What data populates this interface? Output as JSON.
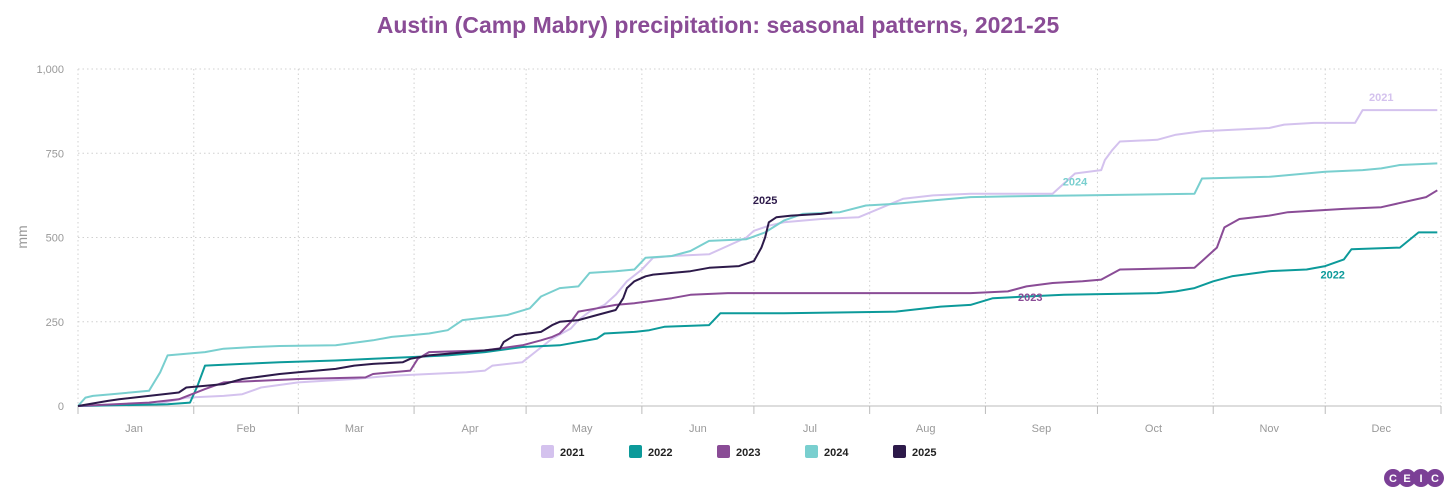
{
  "chart_data": {
    "type": "line",
    "title": "Austin (Camp Mabry) precipitation: seasonal patterns, 2021-25",
    "ylabel": "mm",
    "xlabel": "",
    "ylim": [
      0,
      1000
    ],
    "y_ticks": [
      0,
      250,
      500,
      750,
      1000
    ],
    "y_tick_labels": [
      "0",
      "250",
      "500",
      "750",
      "1,000"
    ],
    "x_range": [
      1,
      366
    ],
    "month_labels": [
      "Jan",
      "Feb",
      "Mar",
      "Apr",
      "May",
      "Jun",
      "Jul",
      "Aug",
      "Sep",
      "Oct",
      "Nov",
      "Dec"
    ],
    "month_boundaries_day": [
      1,
      32,
      60,
      91,
      121,
      152,
      182,
      213,
      244,
      274,
      305,
      335,
      366
    ],
    "month_label_days": [
      16,
      46,
      75,
      106,
      136,
      167,
      197,
      228,
      259,
      289,
      320,
      350
    ],
    "grid": true,
    "legend_position": "bottom",
    "series": [
      {
        "name": "2021",
        "color": "#d4c2ee",
        "label_day": 350,
        "label_value": 905,
        "points": [
          [
            1,
            0
          ],
          [
            22,
            5
          ],
          [
            30,
            25
          ],
          [
            40,
            30
          ],
          [
            45,
            35
          ],
          [
            50,
            55
          ],
          [
            60,
            70
          ],
          [
            75,
            80
          ],
          [
            85,
            90
          ],
          [
            95,
            95
          ],
          [
            105,
            100
          ],
          [
            110,
            105
          ],
          [
            112,
            120
          ],
          [
            120,
            130
          ],
          [
            124,
            165
          ],
          [
            128,
            200
          ],
          [
            133,
            230
          ],
          [
            135,
            255
          ],
          [
            138,
            280
          ],
          [
            142,
            300
          ],
          [
            145,
            330
          ],
          [
            148,
            370
          ],
          [
            152,
            405
          ],
          [
            155,
            440
          ],
          [
            160,
            445
          ],
          [
            170,
            450
          ],
          [
            180,
            500
          ],
          [
            182,
            520
          ],
          [
            186,
            535
          ],
          [
            190,
            545
          ],
          [
            200,
            555
          ],
          [
            210,
            560
          ],
          [
            222,
            615
          ],
          [
            230,
            625
          ],
          [
            240,
            630
          ],
          [
            262,
            630
          ],
          [
            265,
            660
          ],
          [
            268,
            690
          ],
          [
            275,
            700
          ],
          [
            276,
            730
          ],
          [
            278,
            760
          ],
          [
            280,
            785
          ],
          [
            290,
            790
          ],
          [
            295,
            805
          ],
          [
            302,
            815
          ],
          [
            320,
            825
          ],
          [
            324,
            835
          ],
          [
            332,
            840
          ],
          [
            343,
            840
          ],
          [
            345,
            878
          ],
          [
            365,
            878
          ]
        ]
      },
      {
        "name": "2022",
        "color": "#0c9a9a",
        "label_day": 337,
        "label_value": 378,
        "points": [
          [
            1,
            0
          ],
          [
            25,
            5
          ],
          [
            31,
            10
          ],
          [
            33,
            60
          ],
          [
            35,
            120
          ],
          [
            45,
            125
          ],
          [
            55,
            130
          ],
          [
            70,
            135
          ],
          [
            80,
            140
          ],
          [
            90,
            145
          ],
          [
            100,
            150
          ],
          [
            110,
            160
          ],
          [
            120,
            175
          ],
          [
            130,
            180
          ],
          [
            140,
            200
          ],
          [
            142,
            215
          ],
          [
            150,
            220
          ],
          [
            154,
            225
          ],
          [
            158,
            235
          ],
          [
            170,
            240
          ],
          [
            173,
            275
          ],
          [
            190,
            275
          ],
          [
            220,
            280
          ],
          [
            232,
            295
          ],
          [
            240,
            300
          ],
          [
            246,
            320
          ],
          [
            255,
            325
          ],
          [
            265,
            330
          ],
          [
            290,
            335
          ],
          [
            295,
            340
          ],
          [
            300,
            350
          ],
          [
            305,
            370
          ],
          [
            310,
            385
          ],
          [
            320,
            400
          ],
          [
            330,
            405
          ],
          [
            335,
            415
          ],
          [
            340,
            435
          ],
          [
            342,
            465
          ],
          [
            355,
            470
          ],
          [
            360,
            515
          ],
          [
            365,
            515
          ]
        ]
      },
      {
        "name": "2023",
        "color": "#8a4c96",
        "label_day": 256,
        "label_value": 312,
        "points": [
          [
            1,
            0
          ],
          [
            20,
            10
          ],
          [
            28,
            20
          ],
          [
            35,
            50
          ],
          [
            40,
            70
          ],
          [
            50,
            75
          ],
          [
            60,
            80
          ],
          [
            78,
            85
          ],
          [
            80,
            95
          ],
          [
            90,
            105
          ],
          [
            92,
            140
          ],
          [
            95,
            160
          ],
          [
            110,
            165
          ],
          [
            120,
            180
          ],
          [
            125,
            195
          ],
          [
            128,
            205
          ],
          [
            130,
            215
          ],
          [
            133,
            250
          ],
          [
            135,
            280
          ],
          [
            140,
            290
          ],
          [
            145,
            300
          ],
          [
            150,
            305
          ],
          [
            160,
            320
          ],
          [
            165,
            330
          ],
          [
            175,
            335
          ],
          [
            240,
            335
          ],
          [
            250,
            340
          ],
          [
            255,
            355
          ],
          [
            262,
            365
          ],
          [
            270,
            370
          ],
          [
            275,
            375
          ],
          [
            280,
            405
          ],
          [
            300,
            410
          ],
          [
            302,
            430
          ],
          [
            306,
            470
          ],
          [
            308,
            530
          ],
          [
            312,
            555
          ],
          [
            320,
            565
          ],
          [
            325,
            575
          ],
          [
            340,
            585
          ],
          [
            350,
            590
          ],
          [
            362,
            620
          ],
          [
            365,
            640
          ]
        ]
      },
      {
        "name": "2024",
        "color": "#79cfcf",
        "label_day": 268,
        "label_value": 655,
        "points": [
          [
            1,
            0
          ],
          [
            3,
            25
          ],
          [
            5,
            30
          ],
          [
            10,
            35
          ],
          [
            15,
            40
          ],
          [
            20,
            45
          ],
          [
            23,
            100
          ],
          [
            25,
            150
          ],
          [
            30,
            155
          ],
          [
            35,
            160
          ],
          [
            40,
            170
          ],
          [
            48,
            175
          ],
          [
            55,
            178
          ],
          [
            70,
            180
          ],
          [
            80,
            195
          ],
          [
            85,
            205
          ],
          [
            90,
            210
          ],
          [
            95,
            215
          ],
          [
            100,
            225
          ],
          [
            104,
            255
          ],
          [
            108,
            260
          ],
          [
            116,
            270
          ],
          [
            122,
            290
          ],
          [
            125,
            325
          ],
          [
            130,
            350
          ],
          [
            135,
            355
          ],
          [
            138,
            395
          ],
          [
            145,
            400
          ],
          [
            150,
            405
          ],
          [
            153,
            440
          ],
          [
            160,
            445
          ],
          [
            165,
            460
          ],
          [
            170,
            490
          ],
          [
            180,
            495
          ],
          [
            185,
            515
          ],
          [
            190,
            550
          ],
          [
            195,
            570
          ],
          [
            205,
            575
          ],
          [
            212,
            595
          ],
          [
            220,
            600
          ],
          [
            230,
            610
          ],
          [
            240,
            620
          ],
          [
            250,
            622
          ],
          [
            270,
            625
          ],
          [
            300,
            630
          ],
          [
            302,
            675
          ],
          [
            320,
            680
          ],
          [
            335,
            695
          ],
          [
            345,
            700
          ],
          [
            350,
            705
          ],
          [
            355,
            715
          ],
          [
            365,
            720
          ]
        ]
      },
      {
        "name": "2025",
        "color": "#2d1a4a",
        "label_day": 185,
        "label_value": 600,
        "points": [
          [
            1,
            0
          ],
          [
            9,
            15
          ],
          [
            12,
            20
          ],
          [
            20,
            30
          ],
          [
            28,
            40
          ],
          [
            30,
            55
          ],
          [
            40,
            65
          ],
          [
            45,
            80
          ],
          [
            55,
            95
          ],
          [
            60,
            100
          ],
          [
            70,
            110
          ],
          [
            75,
            120
          ],
          [
            80,
            125
          ],
          [
            88,
            130
          ],
          [
            90,
            140
          ],
          [
            95,
            150
          ],
          [
            100,
            155
          ],
          [
            105,
            160
          ],
          [
            110,
            165
          ],
          [
            114,
            170
          ],
          [
            115,
            190
          ],
          [
            118,
            210
          ],
          [
            125,
            220
          ],
          [
            128,
            240
          ],
          [
            130,
            250
          ],
          [
            135,
            255
          ],
          [
            140,
            270
          ],
          [
            145,
            285
          ],
          [
            147,
            320
          ],
          [
            148,
            350
          ],
          [
            150,
            370
          ],
          [
            153,
            385
          ],
          [
            155,
            390
          ],
          [
            165,
            400
          ],
          [
            170,
            410
          ],
          [
            178,
            415
          ],
          [
            182,
            430
          ],
          [
            184,
            470
          ],
          [
            185,
            500
          ],
          [
            186,
            545
          ],
          [
            188,
            560
          ],
          [
            192,
            565
          ],
          [
            200,
            570
          ],
          [
            203,
            575
          ]
        ]
      }
    ]
  },
  "branding": {
    "logo_letters": [
      "C",
      "E",
      "I",
      "C"
    ],
    "logo_color": "#7b3f96"
  }
}
